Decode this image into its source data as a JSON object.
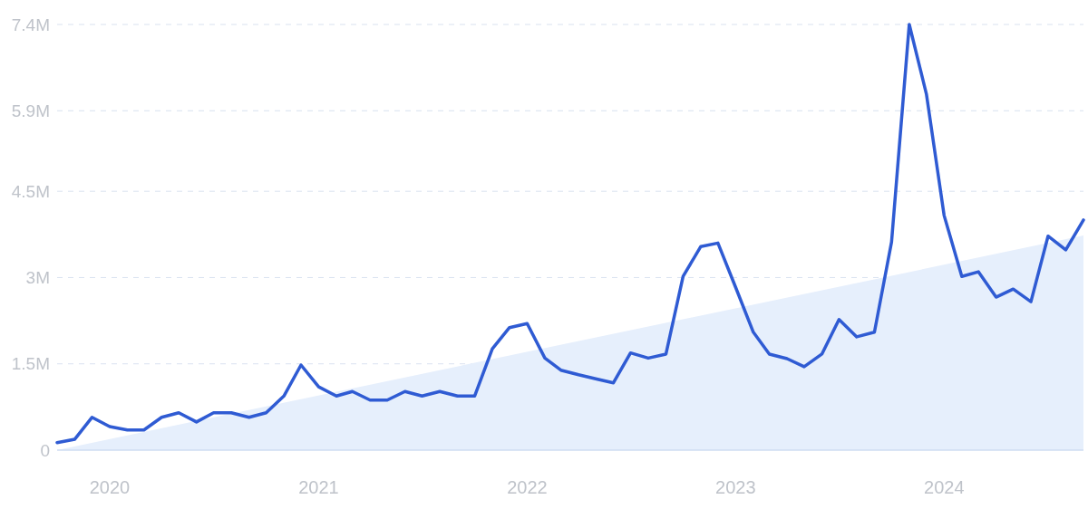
{
  "chart_data": {
    "type": "line",
    "x": [
      "2019-10",
      "2019-11",
      "2019-12",
      "2020-01",
      "2020-02",
      "2020-03",
      "2020-04",
      "2020-05",
      "2020-06",
      "2020-07",
      "2020-08",
      "2020-09",
      "2020-10",
      "2020-11",
      "2020-12",
      "2021-01",
      "2021-02",
      "2021-03",
      "2021-04",
      "2021-05",
      "2021-06",
      "2021-07",
      "2021-08",
      "2021-09",
      "2021-10",
      "2021-11",
      "2021-12",
      "2022-01",
      "2022-02",
      "2022-03",
      "2022-04",
      "2022-05",
      "2022-06",
      "2022-07",
      "2022-08",
      "2022-09",
      "2022-10",
      "2022-11",
      "2022-12",
      "2023-01",
      "2023-02",
      "2023-03",
      "2023-04",
      "2023-05",
      "2023-06",
      "2023-07",
      "2023-08",
      "2023-09",
      "2023-10",
      "2023-11",
      "2023-12",
      "2024-01",
      "2024-02",
      "2024-03",
      "2024-04",
      "2024-05",
      "2024-06",
      "2024-07",
      "2024-08",
      "2024-09"
    ],
    "series": [
      {
        "type": "area",
        "color": "#e6effc",
        "x": [
          "2019-10",
          "2024-09"
        ],
        "values": [
          0,
          3730000
        ]
      },
      {
        "color": "#2f5bd3",
        "values": [
          130000,
          190000,
          570000,
          410000,
          350000,
          350000,
          570000,
          650000,
          490000,
          650000,
          650000,
          570000,
          650000,
          940000,
          1480000,
          1100000,
          940000,
          1020000,
          870000,
          870000,
          1020000,
          940000,
          1020000,
          940000,
          940000,
          1760000,
          2130000,
          2200000,
          1600000,
          1390000,
          1310000,
          1240000,
          1170000,
          1690000,
          1600000,
          1670000,
          3020000,
          3540000,
          3600000,
          2830000,
          2050000,
          1670000,
          1590000,
          1450000,
          1670000,
          2270000,
          1970000,
          2050000,
          3620000,
          7400000,
          6190000,
          4080000,
          3020000,
          3100000,
          2660000,
          2800000,
          2580000,
          3720000,
          3480000,
          4000000
        ]
      }
    ],
    "xlim": [
      "2019-10",
      "2024-09"
    ],
    "xticks": [
      {
        "value": "2020-01",
        "label": "2020"
      },
      {
        "value": "2021-01",
        "label": "2021"
      },
      {
        "value": "2022-01",
        "label": "2022"
      },
      {
        "value": "2023-01",
        "label": "2023"
      },
      {
        "value": "2024-01",
        "label": "2024"
      }
    ],
    "ylim": [
      0,
      7400000
    ],
    "yticks": [
      {
        "value": 0,
        "label": "0"
      },
      {
        "value": 1500000,
        "label": "1.5M"
      },
      {
        "value": 3000000,
        "label": "3M"
      },
      {
        "value": 4500000,
        "label": "4.5M"
      },
      {
        "value": 5900000,
        "label": "5.9M"
      },
      {
        "value": 7400000,
        "label": "7.4M"
      }
    ],
    "grid": "y"
  }
}
